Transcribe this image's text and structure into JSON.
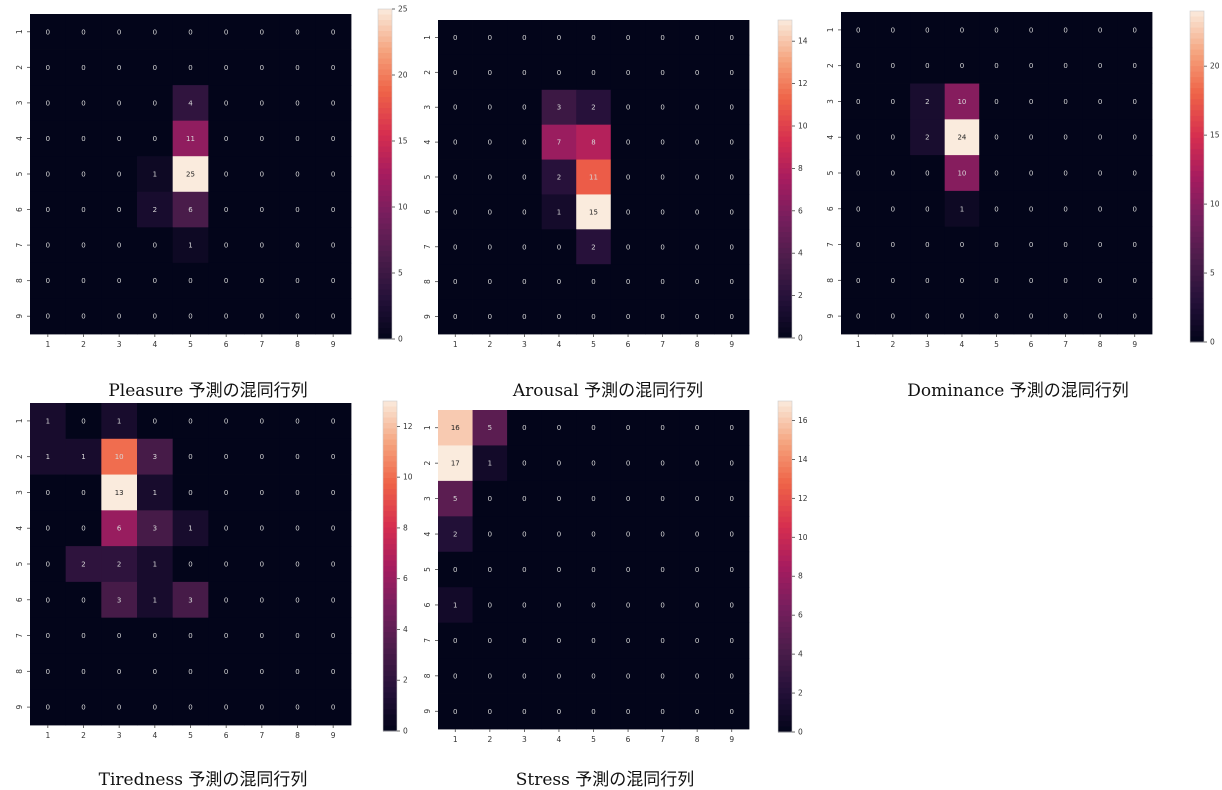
{
  "chart_data": [
    {
      "type": "heatmap",
      "title": "Pleasure 予測の混同行列",
      "x_ticks": [
        "1",
        "2",
        "3",
        "4",
        "5",
        "6",
        "7",
        "8",
        "9"
      ],
      "y_ticks": [
        "1",
        "2",
        "3",
        "4",
        "5",
        "6",
        "7",
        "8",
        "9"
      ],
      "colorbar_max": 25,
      "colorbar_ticks": [
        0,
        5,
        10,
        15,
        20,
        25
      ],
      "matrix": [
        [
          0,
          0,
          0,
          0,
          0,
          0,
          0,
          0,
          0
        ],
        [
          0,
          0,
          0,
          0,
          0,
          0,
          0,
          0,
          0
        ],
        [
          0,
          0,
          0,
          0,
          4,
          0,
          0,
          0,
          0
        ],
        [
          0,
          0,
          0,
          0,
          11,
          0,
          0,
          0,
          0
        ],
        [
          0,
          0,
          0,
          1,
          25,
          0,
          0,
          0,
          0
        ],
        [
          0,
          0,
          0,
          2,
          6,
          0,
          0,
          0,
          0
        ],
        [
          0,
          0,
          0,
          0,
          1,
          0,
          0,
          0,
          0
        ],
        [
          0,
          0,
          0,
          0,
          0,
          0,
          0,
          0,
          0
        ],
        [
          0,
          0,
          0,
          0,
          0,
          0,
          0,
          0,
          0
        ]
      ]
    },
    {
      "type": "heatmap",
      "title": "Arousal 予測の混同行列",
      "x_ticks": [
        "1",
        "2",
        "3",
        "4",
        "5",
        "6",
        "7",
        "8",
        "9"
      ],
      "y_ticks": [
        "1",
        "2",
        "3",
        "4",
        "5",
        "6",
        "7",
        "8",
        "9"
      ],
      "colorbar_max": 15,
      "colorbar_ticks": [
        0,
        2,
        4,
        6,
        8,
        10,
        12,
        14
      ],
      "matrix": [
        [
          0,
          0,
          0,
          0,
          0,
          0,
          0,
          0,
          0
        ],
        [
          0,
          0,
          0,
          0,
          0,
          0,
          0,
          0,
          0
        ],
        [
          0,
          0,
          0,
          3,
          2,
          0,
          0,
          0,
          0
        ],
        [
          0,
          0,
          0,
          7,
          8,
          0,
          0,
          0,
          0
        ],
        [
          0,
          0,
          0,
          2,
          11,
          0,
          0,
          0,
          0
        ],
        [
          0,
          0,
          0,
          1,
          15,
          0,
          0,
          0,
          0
        ],
        [
          0,
          0,
          0,
          0,
          2,
          0,
          0,
          0,
          0
        ],
        [
          0,
          0,
          0,
          0,
          0,
          0,
          0,
          0,
          0
        ],
        [
          0,
          0,
          0,
          0,
          0,
          0,
          0,
          0,
          0
        ]
      ]
    },
    {
      "type": "heatmap",
      "title": "Dominance 予測の混同行列",
      "x_ticks": [
        "1",
        "2",
        "3",
        "4",
        "5",
        "6",
        "7",
        "8",
        "9"
      ],
      "y_ticks": [
        "1",
        "2",
        "3",
        "4",
        "5",
        "6",
        "7",
        "8",
        "9"
      ],
      "colorbar_max": 24,
      "colorbar_ticks": [
        0,
        5,
        10,
        15,
        20
      ],
      "matrix": [
        [
          0,
          0,
          0,
          0,
          0,
          0,
          0,
          0,
          0
        ],
        [
          0,
          0,
          0,
          0,
          0,
          0,
          0,
          0,
          0
        ],
        [
          0,
          0,
          2,
          10,
          0,
          0,
          0,
          0,
          0
        ],
        [
          0,
          0,
          2,
          24,
          0,
          0,
          0,
          0,
          0
        ],
        [
          0,
          0,
          0,
          10,
          0,
          0,
          0,
          0,
          0
        ],
        [
          0,
          0,
          0,
          1,
          0,
          0,
          0,
          0,
          0
        ],
        [
          0,
          0,
          0,
          0,
          0,
          0,
          0,
          0,
          0
        ],
        [
          0,
          0,
          0,
          0,
          0,
          0,
          0,
          0,
          0
        ],
        [
          0,
          0,
          0,
          0,
          0,
          0,
          0,
          0,
          0
        ]
      ]
    },
    {
      "type": "heatmap",
      "title": "Tiredness 予測の混同行列",
      "x_ticks": [
        "1",
        "2",
        "3",
        "4",
        "5",
        "6",
        "7",
        "8",
        "9"
      ],
      "y_ticks": [
        "1",
        "2",
        "3",
        "4",
        "5",
        "6",
        "7",
        "8",
        "9"
      ],
      "colorbar_max": 13,
      "colorbar_ticks": [
        0,
        2,
        4,
        6,
        8,
        10,
        12
      ],
      "matrix": [
        [
          1,
          0,
          1,
          0,
          0,
          0,
          0,
          0,
          0
        ],
        [
          1,
          1,
          10,
          3,
          0,
          0,
          0,
          0,
          0
        ],
        [
          0,
          0,
          13,
          1,
          0,
          0,
          0,
          0,
          0
        ],
        [
          0,
          0,
          6,
          3,
          1,
          0,
          0,
          0,
          0
        ],
        [
          0,
          2,
          2,
          1,
          0,
          0,
          0,
          0,
          0
        ],
        [
          0,
          0,
          3,
          1,
          3,
          0,
          0,
          0,
          0
        ],
        [
          0,
          0,
          0,
          0,
          0,
          0,
          0,
          0,
          0
        ],
        [
          0,
          0,
          0,
          0,
          0,
          0,
          0,
          0,
          0
        ],
        [
          0,
          0,
          0,
          0,
          0,
          0,
          0,
          0,
          0
        ]
      ]
    },
    {
      "type": "heatmap",
      "title": "Stress 予測の混同行列",
      "x_ticks": [
        "1",
        "2",
        "3",
        "4",
        "5",
        "6",
        "7",
        "8",
        "9"
      ],
      "y_ticks": [
        "1",
        "2",
        "3",
        "4",
        "5",
        "6",
        "7",
        "8",
        "9"
      ],
      "colorbar_max": 17,
      "colorbar_ticks": [
        0,
        2,
        4,
        6,
        8,
        10,
        12,
        14,
        16
      ],
      "matrix": [
        [
          16,
          5,
          0,
          0,
          0,
          0,
          0,
          0,
          0
        ],
        [
          17,
          1,
          0,
          0,
          0,
          0,
          0,
          0,
          0
        ],
        [
          5,
          0,
          0,
          0,
          0,
          0,
          0,
          0,
          0
        ],
        [
          2,
          0,
          0,
          0,
          0,
          0,
          0,
          0,
          0
        ],
        [
          0,
          0,
          0,
          0,
          0,
          0,
          0,
          0,
          0
        ],
        [
          1,
          0,
          0,
          0,
          0,
          0,
          0,
          0,
          0
        ],
        [
          0,
          0,
          0,
          0,
          0,
          0,
          0,
          0,
          0
        ],
        [
          0,
          0,
          0,
          0,
          0,
          0,
          0,
          0,
          0
        ],
        [
          0,
          0,
          0,
          0,
          0,
          0,
          0,
          0,
          0
        ]
      ]
    }
  ]
}
